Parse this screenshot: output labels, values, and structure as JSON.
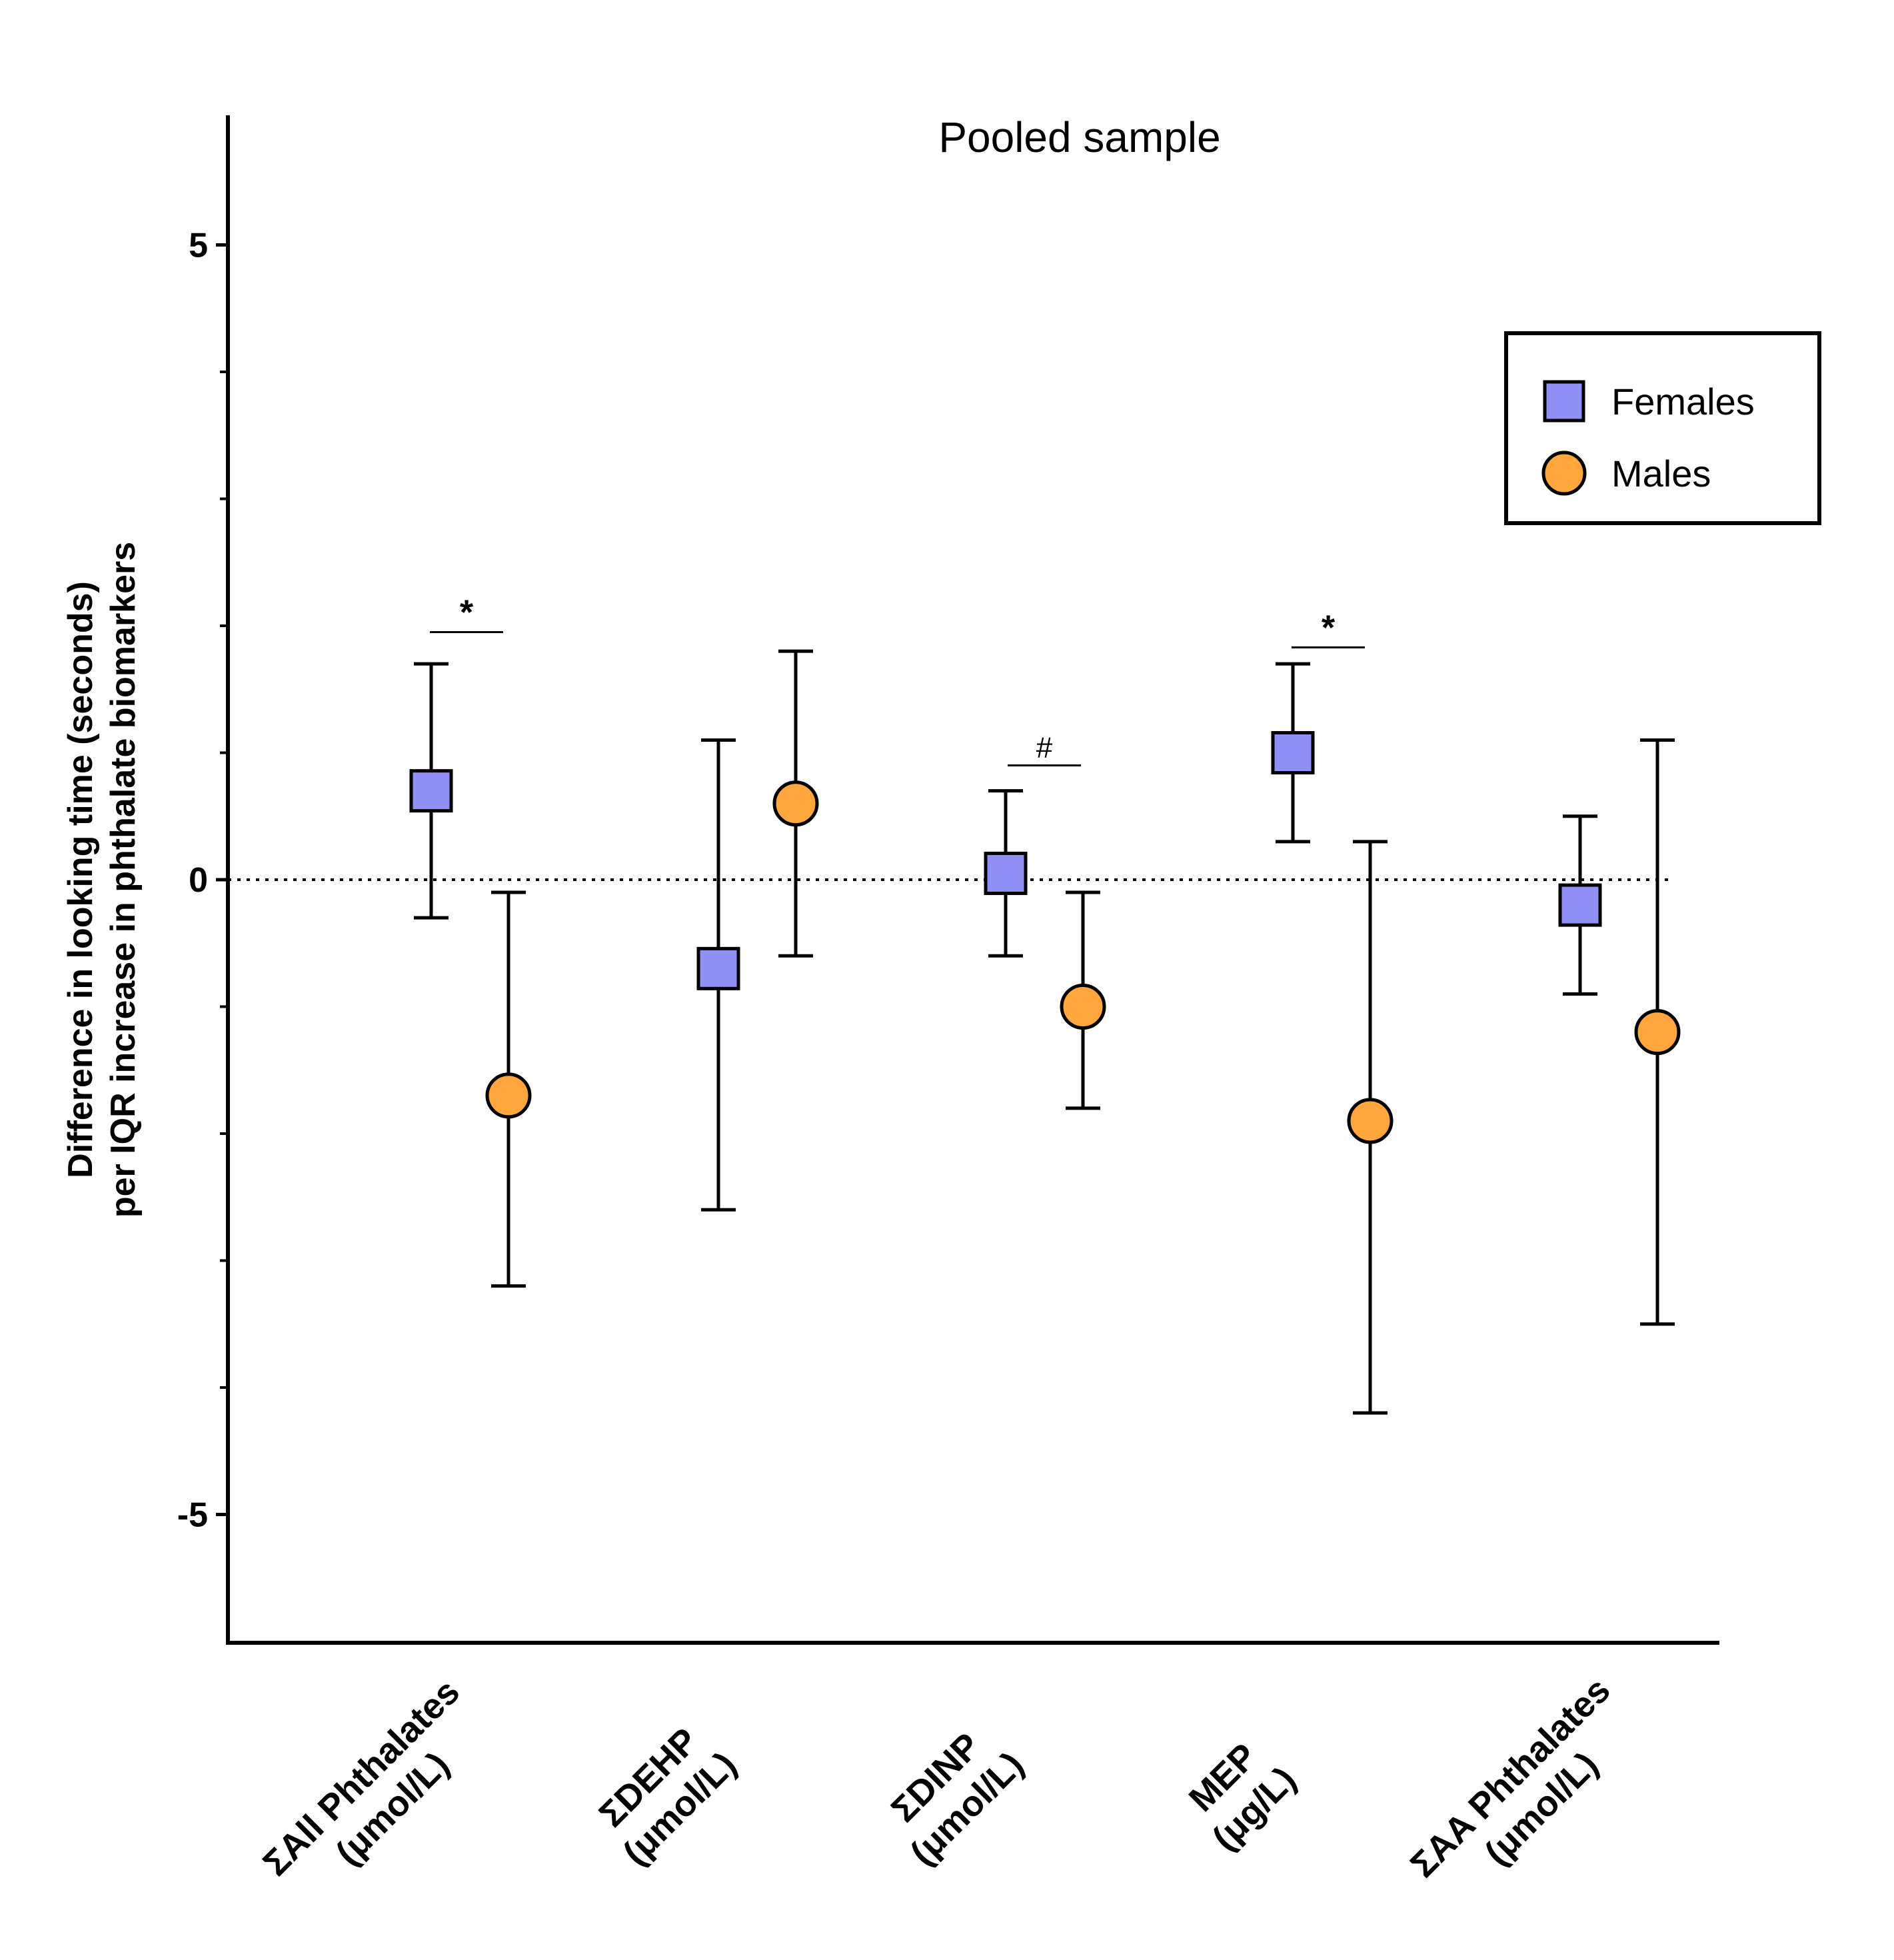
{
  "chart_data": {
    "type": "scatter",
    "title": "Pooled sample",
    "ylabel_lines": [
      "Difference in looking time (seconds)",
      "per IQR increase in phthalate biomarkers"
    ],
    "ylim": [
      -5.6,
      6.0
    ],
    "yticks": [
      {
        "value": 5,
        "label": "5"
      },
      {
        "value": 0,
        "label": "0"
      },
      {
        "value": -5,
        "label": "-5"
      }
    ],
    "yminor_ticks": [
      4,
      3,
      2,
      1,
      -1,
      -2,
      -3,
      -4
    ],
    "reference_line": 0,
    "categories": [
      {
        "lines": [
          "ΣAll Phthalates",
          "(μmol/L)"
        ]
      },
      {
        "lines": [
          "ΣDEHP",
          "(μmol/L)"
        ]
      },
      {
        "lines": [
          "ΣDINP",
          "(μmol/L)"
        ]
      },
      {
        "lines": [
          "MEP",
          "(μg/L)"
        ]
      },
      {
        "lines": [
          "ΣAA Phthalates",
          "(μmol/L)"
        ]
      }
    ],
    "series": [
      {
        "name": "Females",
        "marker": "square",
        "color": "#8f8ff5",
        "points": [
          {
            "estimate": 0.7,
            "lower": -0.3,
            "upper": 1.7
          },
          {
            "estimate": -0.7,
            "lower": -2.6,
            "upper": 1.1
          },
          {
            "estimate": 0.05,
            "lower": -0.6,
            "upper": 0.7
          },
          {
            "estimate": 1.0,
            "lower": 0.3,
            "upper": 1.7
          },
          {
            "estimate": -0.2,
            "lower": -0.9,
            "upper": 0.5
          }
        ]
      },
      {
        "name": "Males",
        "marker": "circle",
        "color": "#ffa63d",
        "points": [
          {
            "estimate": -1.7,
            "lower": -3.2,
            "upper": -0.1
          },
          {
            "estimate": 0.6,
            "lower": -0.6,
            "upper": 1.8
          },
          {
            "estimate": -1.0,
            "lower": -1.8,
            "upper": -0.1
          },
          {
            "estimate": -1.9,
            "lower": -4.2,
            "upper": 0.3
          },
          {
            "estimate": -1.2,
            "lower": -3.5,
            "upper": 1.1
          }
        ]
      }
    ],
    "significance": [
      {
        "category_index": 0,
        "symbol": "*",
        "at_value": 1.95
      },
      {
        "category_index": 2,
        "symbol": "#",
        "at_value": 0.9
      },
      {
        "category_index": 3,
        "symbol": "*",
        "at_value": 1.83
      }
    ],
    "legend": {
      "position": "top-right",
      "entries": [
        {
          "label": "Females",
          "marker": "square"
        },
        {
          "label": "Males",
          "marker": "circle"
        }
      ]
    }
  }
}
